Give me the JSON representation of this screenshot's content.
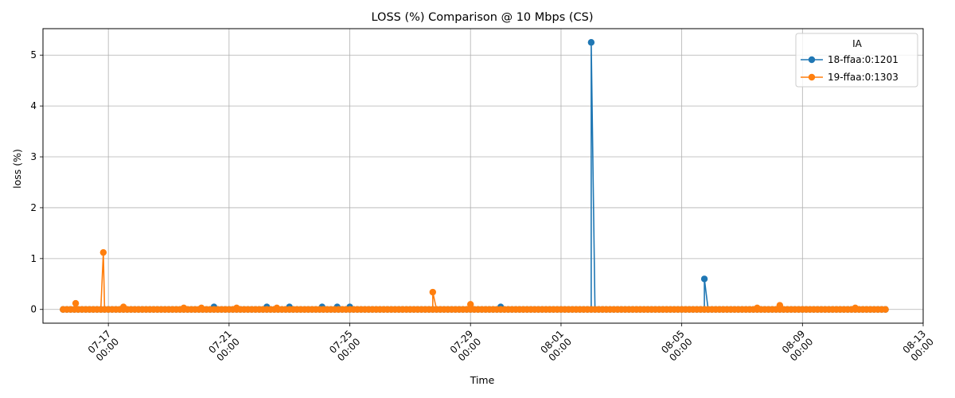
{
  "chart_data": {
    "type": "line",
    "title": "LOSS (%) Comparison @ 10 Mbps (CS)",
    "xlabel": "Time",
    "ylabel": "loss (%)",
    "x_start": "2024-07-15T12:00",
    "x_end": "2024-08-11T18:00",
    "xlim": [
      "2024-07-14T20:00",
      "2024-08-13T00:00"
    ],
    "ylim": [
      -0.27,
      5.52
    ],
    "x_ticks": [
      {
        "date": "2024-07-17",
        "label": [
          "07-17",
          "00:00"
        ]
      },
      {
        "date": "2024-07-21",
        "label": [
          "07-21",
          "00:00"
        ]
      },
      {
        "date": "2024-07-25",
        "label": [
          "07-25",
          "00:00"
        ]
      },
      {
        "date": "2024-07-29",
        "label": [
          "07-29",
          "00:00"
        ]
      },
      {
        "date": "2024-08-01",
        "label": [
          "08-01",
          "00:00"
        ]
      },
      {
        "date": "2024-08-05",
        "label": [
          "08-05",
          "00:00"
        ]
      },
      {
        "date": "2024-08-09",
        "label": [
          "08-09",
          "00:00"
        ]
      },
      {
        "date": "2024-08-13",
        "label": [
          "08-13",
          "00:00"
        ]
      }
    ],
    "y_ticks": [
      0,
      1,
      2,
      3,
      4,
      5
    ],
    "grid": true,
    "legend": {
      "title": "IA",
      "position": "top-right"
    },
    "series": [
      {
        "name": "18-ffaa:0:1201",
        "color": "#1f77b4",
        "spikes": [
          {
            "x": "2024-07-20T12:00",
            "y": 0.05
          },
          {
            "x": "2024-07-22T06:00",
            "y": 0.05
          },
          {
            "x": "2024-07-23T00:00",
            "y": 0.05
          },
          {
            "x": "2024-07-24T02:00",
            "y": 0.05
          },
          {
            "x": "2024-07-24T14:00",
            "y": 0.05
          },
          {
            "x": "2024-07-25T00:00",
            "y": 0.05
          },
          {
            "x": "2024-07-30T00:00",
            "y": 0.05
          },
          {
            "x": "2024-08-02T00:00",
            "y": 5.25
          },
          {
            "x": "2024-08-05T18:00",
            "y": 0.6
          }
        ]
      },
      {
        "name": "19-ffaa:0:1303",
        "color": "#ff7f0e",
        "spikes": [
          {
            "x": "2024-07-15T22:00",
            "y": 0.12
          },
          {
            "x": "2024-07-16T20:00",
            "y": 1.12
          },
          {
            "x": "2024-07-17T12:00",
            "y": 0.05
          },
          {
            "x": "2024-07-19T12:00",
            "y": 0.03
          },
          {
            "x": "2024-07-20T02:00",
            "y": 0.03
          },
          {
            "x": "2024-07-21T06:00",
            "y": 0.03
          },
          {
            "x": "2024-07-22T14:00",
            "y": 0.03
          },
          {
            "x": "2024-07-27T18:00",
            "y": 0.34
          },
          {
            "x": "2024-07-29T00:00",
            "y": 0.1
          },
          {
            "x": "2024-08-07T12:00",
            "y": 0.03
          },
          {
            "x": "2024-08-08T06:00",
            "y": 0.08
          },
          {
            "x": "2024-08-10T18:00",
            "y": 0.03
          }
        ]
      }
    ]
  }
}
